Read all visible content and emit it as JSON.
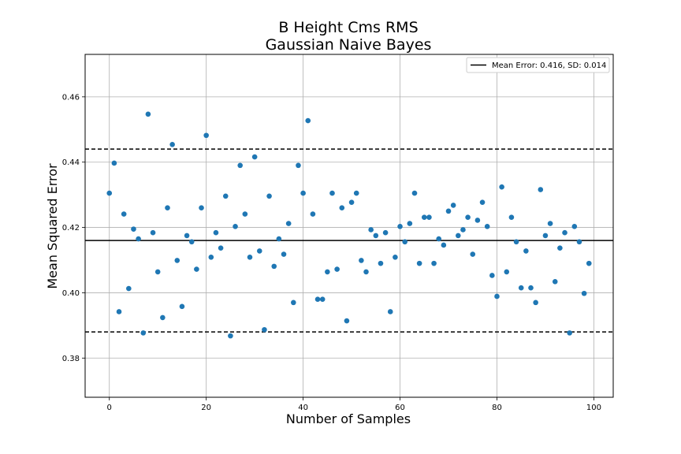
{
  "chart_data": {
    "type": "scatter",
    "title": "B Height Cms RMS",
    "subtitle": "Gaussian Naive Bayes",
    "xlabel": "Number of Samples",
    "ylabel": "Mean Squared Error",
    "xlim": [
      -5,
      104
    ],
    "ylim": [
      0.368,
      0.473
    ],
    "xticks": [
      0,
      20,
      40,
      60,
      80,
      100
    ],
    "yticks": [
      0.38,
      0.4,
      0.42,
      0.44,
      0.46
    ],
    "xtick_labels": [
      "0",
      "20",
      "40",
      "60",
      "80",
      "100"
    ],
    "ytick_labels": [
      "0.38",
      "0.40",
      "0.42",
      "0.44",
      "0.46"
    ],
    "grid": true,
    "legend": {
      "placement": "top-right",
      "entries": [
        "Mean Error: 0.416, SD: 0.014"
      ]
    },
    "mean_line": 0.416,
    "sd_lines": [
      0.388,
      0.444
    ],
    "point_color": "#1f77b4",
    "series": [
      {
        "x": [
          0,
          1,
          2,
          3,
          4,
          5,
          6,
          7,
          8,
          9,
          10,
          11,
          12,
          13,
          14,
          15,
          16,
          17,
          18,
          19,
          20,
          21,
          22,
          23,
          24,
          25,
          26,
          27,
          28,
          29,
          30,
          31,
          32,
          33,
          34,
          35,
          36,
          37,
          38,
          39,
          40,
          41,
          42,
          43,
          44,
          45,
          46,
          47,
          48,
          49,
          50,
          51,
          52,
          53,
          54,
          55,
          56,
          57,
          58,
          59,
          60,
          61,
          62,
          63,
          64,
          65,
          66,
          67,
          68,
          69,
          70,
          71,
          72,
          73,
          74,
          75,
          76,
          77,
          78,
          79,
          80,
          81,
          82,
          83,
          84,
          85,
          86,
          87,
          88,
          89,
          90,
          91,
          92,
          93,
          94,
          95,
          96,
          97,
          98,
          99
        ],
        "y": [
          0.4305,
          0.4397,
          0.3942,
          0.4241,
          0.4013,
          0.4195,
          0.4165,
          0.3877,
          0.4547,
          0.4184,
          0.4064,
          0.3924,
          0.426,
          0.4454,
          0.4099,
          0.3958,
          0.4175,
          0.4156,
          0.4072,
          0.426,
          0.4482,
          0.4109,
          0.4184,
          0.4137,
          0.4296,
          0.3868,
          0.4203,
          0.439,
          0.4241,
          0.4109,
          0.4416,
          0.4128,
          0.3887,
          0.4296,
          0.4081,
          0.4165,
          0.4118,
          0.4212,
          0.397,
          0.439,
          0.4305,
          0.4527,
          0.4241,
          0.398,
          0.398,
          0.4064,
          0.4305,
          0.4072,
          0.426,
          0.3914,
          0.4277,
          0.4305,
          0.4099,
          0.4064,
          0.4193,
          0.4175,
          0.409,
          0.4184,
          0.3942,
          0.4109,
          0.4203,
          0.4156,
          0.4212,
          0.4305,
          0.409,
          0.4231,
          0.4231,
          0.409,
          0.4165,
          0.4146,
          0.425,
          0.4268,
          0.4175,
          0.4193,
          0.4231,
          0.4118,
          0.4222,
          0.4277,
          0.4203,
          0.4053,
          0.3989,
          0.4324,
          0.4064,
          0.4231,
          0.4156,
          0.4015,
          0.4128,
          0.4015,
          0.397,
          0.4316,
          0.4175,
          0.4212,
          0.4034,
          0.4137,
          0.4184,
          0.3877,
          0.4203,
          0.4156,
          0.3998,
          0.409
        ]
      }
    ]
  }
}
